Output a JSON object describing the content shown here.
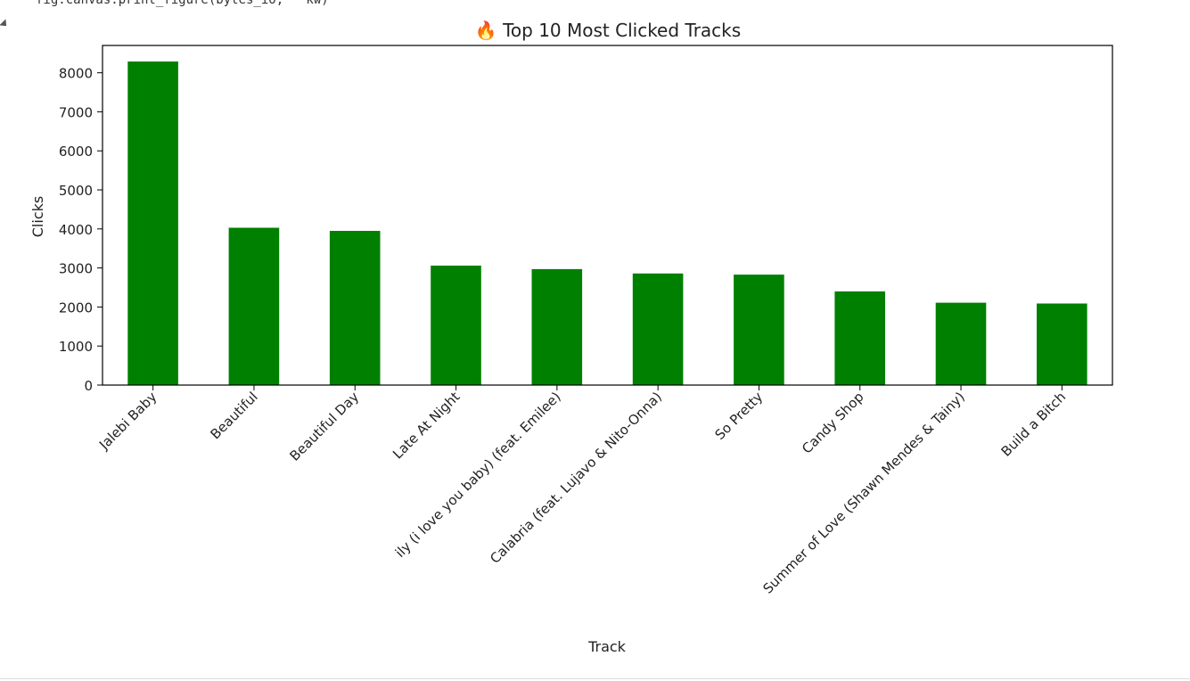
{
  "notebook": {
    "code_fragment": "fig.canvas.print_figure(bytes_io, **kw)"
  },
  "chart_data": {
    "type": "bar",
    "title": "🔥 Top 10 Most Clicked Tracks",
    "xlabel": "Track",
    "ylabel": "Clicks",
    "categories": [
      "Jalebi Baby",
      "Beautiful",
      "Beautiful Day",
      "Late At Night",
      "ily (i love you baby) (feat. Emilee)",
      "Calabria (feat. Lujavo & Nito-Onna)",
      "So Pretty",
      "Candy Shop",
      "Summer of Love (Shawn Mendes & Tainy)",
      "Build a Bitch"
    ],
    "values": [
      8290,
      4030,
      3950,
      3060,
      2970,
      2860,
      2830,
      2400,
      2110,
      2090
    ],
    "ylim": [
      0,
      8700
    ],
    "yticks": [
      0,
      1000,
      2000,
      3000,
      4000,
      5000,
      6000,
      7000,
      8000
    ],
    "bar_color": "#008000",
    "grid": false,
    "legend": "none"
  }
}
